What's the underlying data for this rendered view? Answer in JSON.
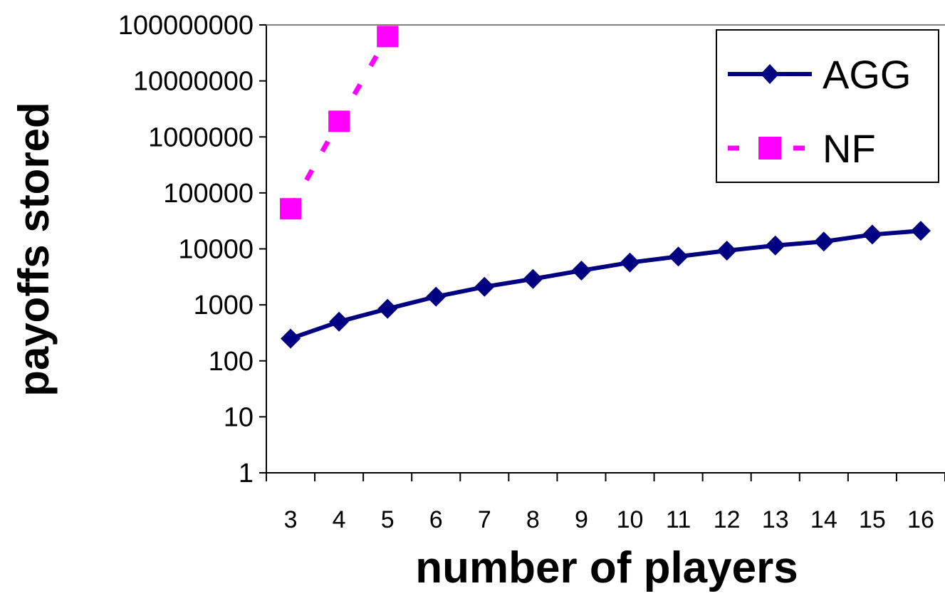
{
  "chart_data": {
    "type": "line",
    "title": "",
    "xlabel": "number of players",
    "ylabel": "payoffs stored",
    "y_scale": "log",
    "ylim": [
      1,
      100000000
    ],
    "y_ticks": [
      "1",
      "10",
      "100",
      "1000",
      "10000",
      "100000",
      "1000000",
      "10000000",
      "100000000"
    ],
    "categories": [
      "3",
      "4",
      "5",
      "6",
      "7",
      "8",
      "9",
      "10",
      "11",
      "12",
      "13",
      "14",
      "15",
      "16"
    ],
    "grid": false,
    "legend_position": "top-right",
    "series": [
      {
        "name": "AGG",
        "color": "#000080",
        "marker": "diamond",
        "line_style": "solid",
        "values": [
          250,
          500,
          850,
          1400,
          2100,
          2900,
          4100,
          5700,
          7300,
          9300,
          11500,
          13500,
          18000,
          21000
        ]
      },
      {
        "name": "NF",
        "color": "#ff00ff",
        "marker": "square",
        "line_style": "dashed",
        "values": [
          52000,
          1900000,
          62000000,
          null,
          null,
          null,
          null,
          null,
          null,
          null,
          null,
          null,
          null,
          null
        ]
      }
    ]
  }
}
